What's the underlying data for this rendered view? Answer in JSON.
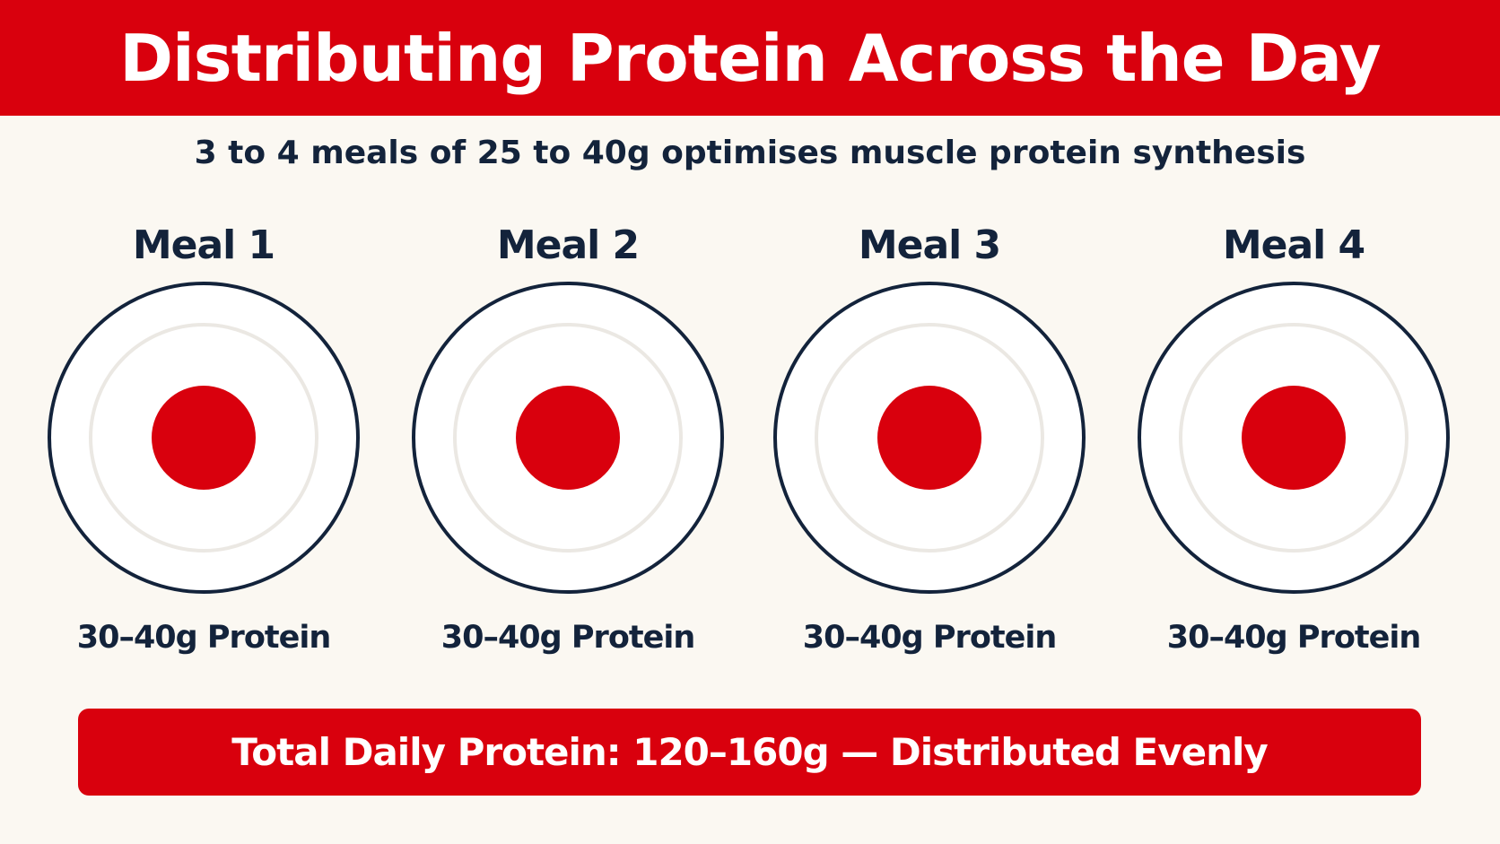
{
  "header": {
    "title": "Distributing Protein Across the Day"
  },
  "subtitle": "3 to 4 meals of 25 to 40g optimises muscle protein synthesis",
  "meals": [
    {
      "title": "Meal 1",
      "amount": "30–40g Protein"
    },
    {
      "title": "Meal 2",
      "amount": "30–40g Protein"
    },
    {
      "title": "Meal 3",
      "amount": "30–40g Protein"
    },
    {
      "title": "Meal 4",
      "amount": "30–40g Protein"
    }
  ],
  "total": "Total Daily Protein: 120–160g — Distributed Evenly",
  "colors": {
    "accent": "#d9000d",
    "text": "#13233b",
    "background": "#fbf8f2",
    "plate_rim": "#13233b"
  },
  "icons": {
    "plate": "plate-icon",
    "protein_portion": "protein-portion-icon"
  }
}
